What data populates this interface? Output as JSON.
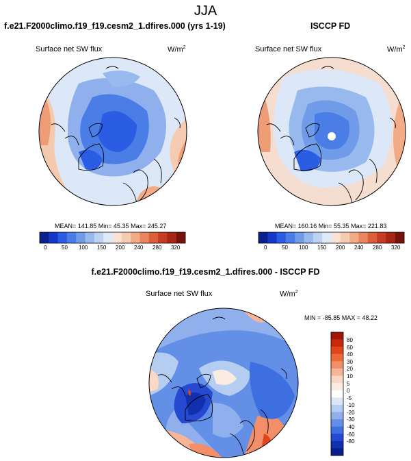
{
  "page_title": "JJA",
  "panels": [
    {
      "title": "f.e21.F2000climo.f19_f19.cesm2_1.dfires.000 (yrs 1-19)",
      "field": "Surface net SW flux",
      "units": "W/m",
      "units_exp": "2",
      "stats": "MEAN= 141.85  Min=  45.35  Max= 245.27"
    },
    {
      "title": "ISCCP FD",
      "field": "Surface net SW flux",
      "units": "W/m",
      "units_exp": "2",
      "stats": "MEAN= 160.16  Min=  55.35  Max= 221.83"
    },
    {
      "title": "f.e21.F2000climo.f19_f19.cesm2_1.dfires.000 - ISCCP FD",
      "field": "Surface net SW flux",
      "units": "W/m",
      "units_exp": "2",
      "stats": "MIN = -85.85 MAX =  48.22"
    }
  ],
  "horizontal_colorbar": {
    "ticks": [
      "0",
      "50",
      "100",
      "150",
      "200",
      "240",
      "280",
      "320"
    ],
    "colors": [
      "#0b1f8f",
      "#1536c8",
      "#2a5de3",
      "#4a7de6",
      "#6f9be8",
      "#97b9ee",
      "#bcd3f3",
      "#dfe9f7",
      "#f8e3d6",
      "#f5cbb2",
      "#f2ab87",
      "#ea8560",
      "#dc5e3b",
      "#c63c22",
      "#a52516",
      "#7a1108"
    ]
  },
  "vertical_colorbar": {
    "ticks": [
      "80",
      "60",
      "40",
      "30",
      "20",
      "10",
      "5",
      "0",
      "-5",
      "-10",
      "-20",
      "-30",
      "-40",
      "-60",
      "-80"
    ],
    "colors": [
      "#a11408",
      "#c8290e",
      "#e0451b",
      "#ec6a3a",
      "#f28f68",
      "#f6b596",
      "#f9d8c5",
      "#fbece3",
      "#ffffff",
      "#dce8f8",
      "#b6cdf2",
      "#8fb0ec",
      "#6390e6",
      "#3e6fe0",
      "#2549d1",
      "#1230ad",
      "#071f86"
    ]
  }
}
